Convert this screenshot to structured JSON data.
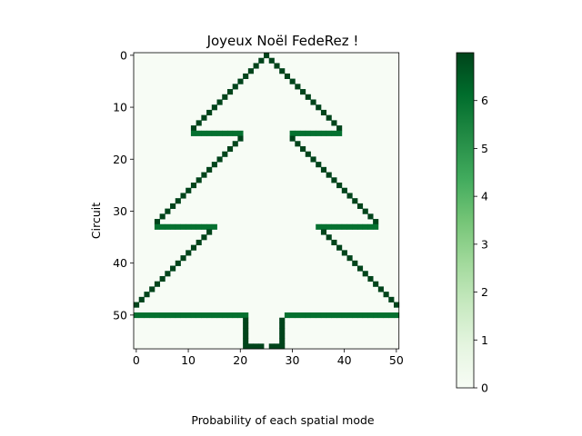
{
  "chart_data": {
    "type": "heatmap",
    "title": "Joyeux Noël FedeRez !",
    "xlabel": "Probability of each spatial mode",
    "ylabel": "Circuit",
    "grid": false,
    "n_cols": 51,
    "n_rows": 57,
    "xlim": [
      -0.5,
      50.5
    ],
    "ylim_top_to_bottom": [
      -0.5,
      56.5
    ],
    "x_ticks": [
      0,
      10,
      20,
      30,
      40,
      50
    ],
    "y_ticks": [
      0,
      10,
      20,
      30,
      40,
      50
    ],
    "colormap": "Greens",
    "colorbar": {
      "min": 0,
      "max": 7,
      "ticks": [
        0,
        1,
        2,
        3,
        4,
        5,
        6
      ],
      "colors": [
        "#f7fcf5",
        "#e5f5e0",
        "#c7e9c0",
        "#a1d99b",
        "#74c476",
        "#41ab5d",
        "#238b45",
        "#006d2c",
        "#00441b"
      ]
    },
    "background_value": 0,
    "cells": {
      "outline_value": 7,
      "branch_value": 6,
      "trunk_value": 7,
      "left_diagonals": [
        {
          "from": [
            25,
            0
          ],
          "to": [
            15,
            10
          ]
        },
        {
          "from": [
            14,
            11
          ],
          "to": [
            11,
            14
          ]
        },
        {
          "from": [
            20,
            16
          ],
          "to": [
            4,
            32
          ]
        },
        {
          "from": [
            14,
            34
          ],
          "to": [
            0,
            48
          ]
        }
      ],
      "right_diagonals": [
        {
          "from": [
            26,
            1
          ],
          "to": [
            39,
            14
          ]
        },
        {
          "from": [
            30,
            16
          ],
          "to": [
            46,
            32
          ]
        },
        {
          "from": [
            36,
            34
          ],
          "to": [
            50,
            48
          ]
        }
      ],
      "horizontal_bars": [
        {
          "row": 15,
          "from": 11,
          "to": 20
        },
        {
          "row": 15,
          "from": 30,
          "to": 39
        },
        {
          "row": 33,
          "from": 4,
          "to": 15
        },
        {
          "row": 33,
          "from": 35,
          "to": 46
        },
        {
          "row": 50,
          "from": 0,
          "to": 21
        },
        {
          "row": 50,
          "from": 29,
          "to": 50
        }
      ],
      "trunk_columns": [
        {
          "col": 21,
          "from": 51,
          "to": 56
        },
        {
          "col": 28,
          "from": 51,
          "to": 56
        }
      ],
      "trunk_base": [
        {
          "row": 56,
          "from": 21,
          "to": 24
        },
        {
          "row": 56,
          "from": 26,
          "to": 28
        }
      ]
    }
  }
}
